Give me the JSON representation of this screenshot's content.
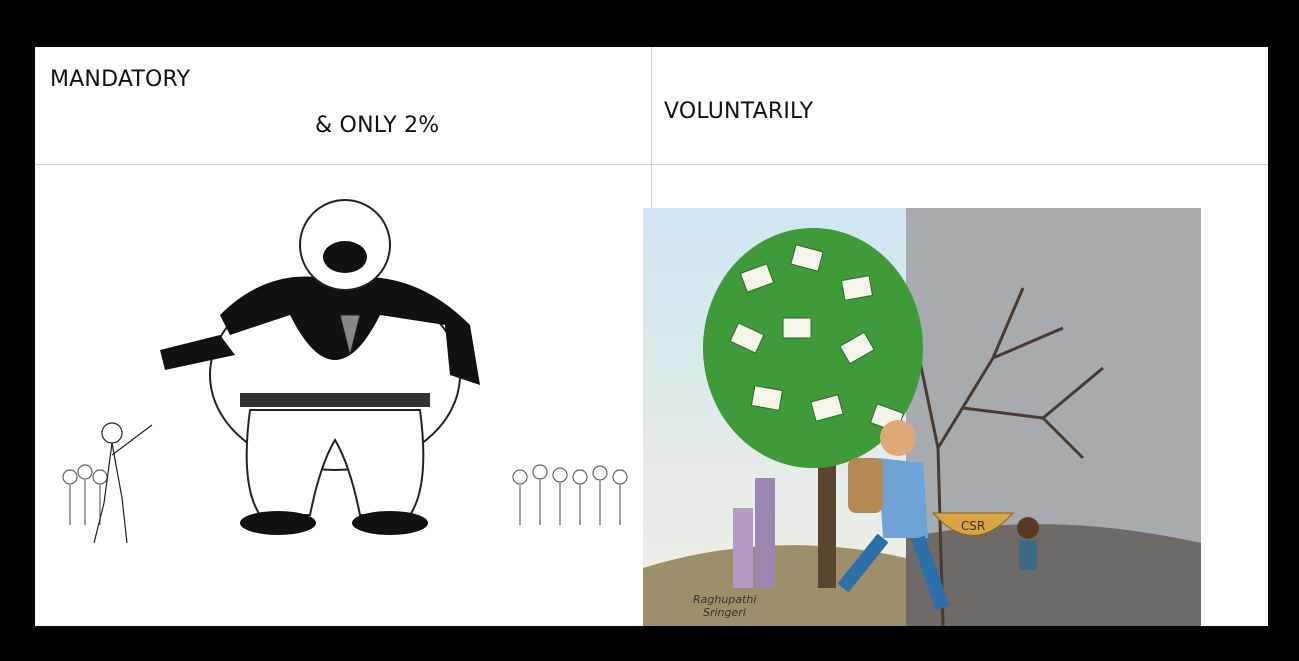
{
  "table": {
    "header": [
      {
        "lines": [
          "MANDATORY",
          "& ONLY 2%"
        ]
      },
      {
        "lines": [
          "VOLUNTARILY"
        ]
      }
    ]
  },
  "illustrations": {
    "right": {
      "basket_label": "CSR",
      "signature": [
        "Raghupathi",
        "Sringeri"
      ]
    }
  }
}
